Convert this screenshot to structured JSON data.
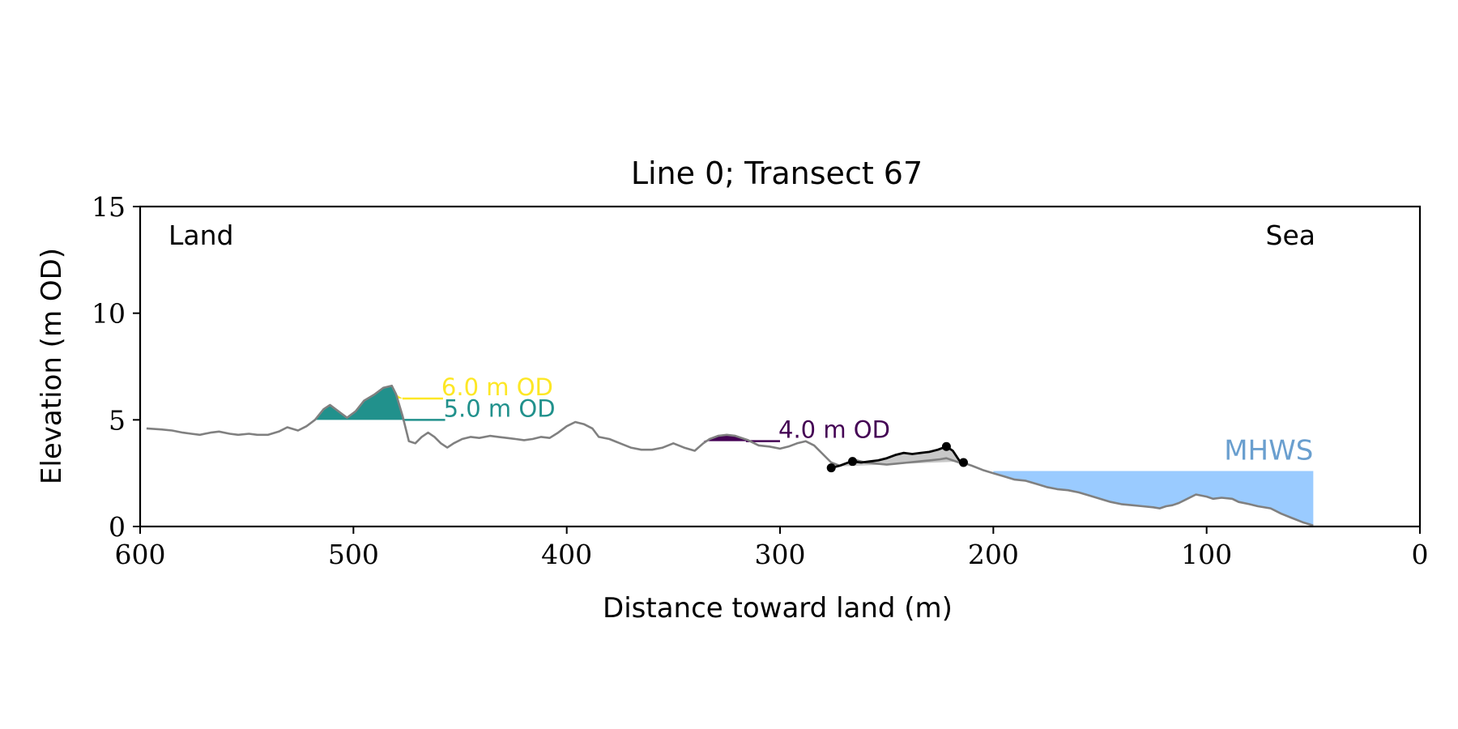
{
  "chart_data": {
    "type": "line",
    "title": "Line 0; Transect 67",
    "xlabel": "Distance toward land (m)",
    "ylabel": "Elevation (m OD)",
    "xlim": [
      600,
      0
    ],
    "ylim": [
      0,
      15
    ],
    "x_ticks": [
      600,
      500,
      400,
      300,
      200,
      100,
      0
    ],
    "y_ticks": [
      0,
      5,
      10,
      15
    ],
    "grid": false,
    "corner_labels": {
      "left": "Land",
      "right": "Sea"
    },
    "profile": {
      "color": "#808080",
      "x": [
        597,
        590,
        585,
        580,
        576,
        572,
        567,
        563,
        558,
        554,
        549,
        545,
        540,
        535,
        531,
        526,
        522,
        518,
        514,
        511,
        507,
        503,
        499,
        495,
        490,
        486,
        482,
        480,
        477,
        474,
        471,
        468,
        465,
        462,
        459,
        456,
        453,
        449,
        445,
        441,
        436,
        432,
        428,
        424,
        420,
        416,
        412,
        408,
        404,
        400,
        396,
        392,
        388,
        385,
        380,
        375,
        370,
        365,
        360,
        355,
        350,
        345,
        340,
        336,
        333,
        329,
        325,
        321,
        318,
        315,
        310,
        305,
        300,
        296,
        292,
        288,
        284,
        280,
        276,
        272,
        268,
        264,
        260,
        255,
        250,
        245,
        240,
        235,
        230,
        225,
        222,
        219,
        216,
        213,
        210,
        205,
        200,
        195,
        190,
        185,
        180,
        175,
        170,
        165,
        160,
        155,
        150,
        145,
        140,
        135,
        130,
        125,
        122,
        119,
        116,
        113,
        110,
        105,
        100,
        97,
        93,
        88,
        85,
        80,
        76,
        70,
        65,
        60,
        55,
        50
      ],
      "y": [
        4.6,
        4.55,
        4.5,
        4.4,
        4.35,
        4.3,
        4.4,
        4.45,
        4.35,
        4.3,
        4.35,
        4.3,
        4.3,
        4.45,
        4.65,
        4.5,
        4.7,
        5.0,
        5.5,
        5.7,
        5.4,
        5.1,
        5.4,
        5.9,
        6.2,
        6.5,
        6.6,
        6.2,
        5.2,
        4.0,
        3.9,
        4.2,
        4.4,
        4.2,
        3.9,
        3.7,
        3.9,
        4.1,
        4.2,
        4.15,
        4.25,
        4.2,
        4.15,
        4.1,
        4.05,
        4.1,
        4.2,
        4.15,
        4.4,
        4.7,
        4.9,
        4.8,
        4.6,
        4.2,
        4.1,
        3.9,
        3.7,
        3.6,
        3.6,
        3.7,
        3.9,
        3.7,
        3.55,
        3.9,
        4.1,
        4.25,
        4.3,
        4.25,
        4.15,
        4.05,
        3.8,
        3.75,
        3.65,
        3.75,
        3.9,
        4.0,
        3.8,
        3.4,
        3.0,
        2.85,
        3.0,
        3.1,
        3.0,
        2.95,
        2.9,
        2.95,
        3.0,
        3.05,
        3.1,
        3.15,
        3.2,
        3.1,
        3.0,
        2.95,
        2.85,
        2.65,
        2.5,
        2.35,
        2.2,
        2.15,
        2.0,
        1.85,
        1.75,
        1.7,
        1.6,
        1.45,
        1.3,
        1.15,
        1.05,
        1.0,
        0.95,
        0.9,
        0.85,
        0.95,
        1.0,
        1.1,
        1.25,
        1.5,
        1.4,
        1.3,
        1.35,
        1.3,
        1.15,
        1.05,
        0.95,
        0.85,
        0.6,
        0.4,
        0.2,
        0.05
      ]
    },
    "contours": [
      {
        "label": "6.0 m OD",
        "level": 6.0,
        "color": "#fde725",
        "fill_x": [
          489,
          477
        ],
        "line_x": [
          477,
          458
        ]
      },
      {
        "label": "5.0 m OD",
        "level": 5.0,
        "color": "#21918c",
        "fill_x": [
          519,
          477
        ],
        "line_x": [
          477,
          457
        ]
      },
      {
        "label": "4.0 m OD",
        "level": 4.0,
        "color": "#440154",
        "fill_x": [
          340,
          316
        ],
        "line_x": [
          316,
          300
        ]
      }
    ],
    "dune_region": {
      "fill_color": "#c8c8c8",
      "toe_line": {
        "x": [
          276,
          214
        ],
        "y": [
          2.8,
          3.05
        ]
      },
      "crest_line": {
        "color": "#000000",
        "x": [
          276,
          272,
          268,
          266,
          262,
          258,
          254,
          250,
          246,
          242,
          238,
          234,
          230,
          226,
          222,
          219,
          216,
          214
        ],
        "y": [
          2.75,
          2.85,
          3.0,
          3.05,
          3.0,
          3.05,
          3.1,
          3.2,
          3.35,
          3.45,
          3.4,
          3.45,
          3.5,
          3.6,
          3.75,
          3.55,
          3.1,
          3.0
        ]
      },
      "points": [
        {
          "x": 276,
          "y": 2.75
        },
        {
          "x": 266,
          "y": 3.05
        },
        {
          "x": 222,
          "y": 3.75
        },
        {
          "x": 214,
          "y": 3.0
        }
      ]
    },
    "mhws": {
      "label": "MHWS",
      "level": 2.6,
      "color": "#9acbff",
      "label_color": "#6a9fcf",
      "x_range": [
        200,
        50
      ]
    }
  }
}
